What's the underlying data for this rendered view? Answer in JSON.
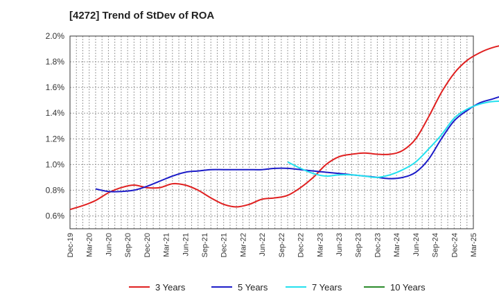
{
  "chart_data": {
    "type": "line",
    "title": "[4272]  Trend of StDev of ROA",
    "xlabel": "",
    "ylabel": "",
    "ylim": [
      0.5,
      2.0
    ],
    "y_ticks": [
      "0.6%",
      "0.8%",
      "1.0%",
      "1.2%",
      "1.4%",
      "1.6%",
      "1.8%",
      "2.0%"
    ],
    "y_tick_values": [
      0.6,
      0.8,
      1.0,
      1.2,
      1.4,
      1.6,
      1.8,
      2.0
    ],
    "x_ticks": [
      "Dec-19",
      "Mar-20",
      "Jun-20",
      "Sep-20",
      "Dec-20",
      "Mar-21",
      "Jun-21",
      "Sep-21",
      "Dec-21",
      "Mar-22",
      "Jun-22",
      "Sep-22",
      "Dec-22",
      "Mar-23",
      "Jun-23",
      "Sep-23",
      "Dec-23",
      "Mar-24",
      "Jun-24",
      "Sep-24",
      "Dec-24",
      "Mar-25"
    ],
    "grid": true,
    "legend_position": "bottom",
    "series": [
      {
        "name": "3 Years",
        "color": "#e02020",
        "values": [
          0.65,
          0.68,
          0.72,
          0.78,
          0.82,
          0.84,
          0.82,
          0.82,
          0.85,
          0.84,
          0.8,
          0.74,
          0.69,
          0.67,
          0.69,
          0.73,
          0.74,
          0.76,
          0.82,
          0.9,
          1.0,
          1.06,
          1.08,
          1.09,
          1.08,
          1.08,
          1.11,
          1.2,
          1.37,
          1.56,
          1.71,
          1.81,
          1.87,
          1.91,
          1.93,
          1.92,
          1.9
        ]
      },
      {
        "name": "5 Years",
        "color": "#1c1cc8",
        "values": [
          null,
          null,
          0.81,
          0.79,
          0.79,
          0.8,
          0.83,
          0.87,
          0.91,
          0.94,
          0.95,
          0.96,
          0.96,
          0.96,
          0.96,
          0.96,
          0.97,
          0.97,
          0.96,
          0.95,
          0.94,
          0.93,
          0.92,
          0.91,
          0.9,
          0.89,
          0.9,
          0.94,
          1.04,
          1.2,
          1.34,
          1.42,
          1.48,
          1.51,
          1.54,
          1.55,
          1.55
        ]
      },
      {
        "name": "7 Years",
        "color": "#22e0ee",
        "values": [
          null,
          null,
          null,
          null,
          null,
          null,
          null,
          null,
          null,
          null,
          null,
          null,
          null,
          null,
          null,
          null,
          null,
          1.02,
          0.97,
          0.93,
          0.91,
          0.92,
          0.92,
          0.91,
          0.9,
          0.92,
          0.96,
          1.02,
          1.12,
          1.23,
          1.36,
          1.43,
          1.47,
          1.49,
          1.49,
          1.47,
          1.45
        ]
      },
      {
        "name": "10 Years",
        "color": "#2a8a2a",
        "values": []
      }
    ]
  }
}
